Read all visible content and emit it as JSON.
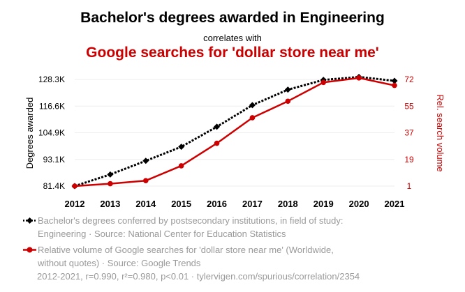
{
  "header": {
    "title": "Bachelor's degrees awarded in Engineering",
    "subtitle": "correlates with",
    "title2": "Google searches for 'dollar store near me'"
  },
  "chart_data": {
    "type": "line",
    "x": [
      2012,
      2013,
      2014,
      2015,
      2016,
      2017,
      2018,
      2019,
      2020,
      2021
    ],
    "series": [
      {
        "name": "Bachelor's degrees conferred by postsecondary institutions, in field of study: Engineering",
        "axis": "left",
        "style": "dotted",
        "marker": "diamond",
        "color": "#000000",
        "values": [
          81400,
          86500,
          92500,
          98700,
          107500,
          117000,
          123800,
          128100,
          129400,
          127700
        ]
      },
      {
        "name": "Relative volume of Google searches for 'dollar store near me'",
        "axis": "right",
        "style": "solid",
        "marker": "circle",
        "color": "#cc0000",
        "values": [
          1,
          2.6,
          4.6,
          14.5,
          29.5,
          46.5,
          57.5,
          70,
          73,
          68
        ]
      }
    ],
    "y_left": {
      "label": "Degrees awarded",
      "ticks": [
        "81.4K",
        "93.1K",
        "104.9K",
        "116.6K",
        "128.3K"
      ],
      "range": [
        81400,
        128300
      ]
    },
    "y_right": {
      "label": "Rel. search volume",
      "ticks": [
        "1",
        "19",
        "37",
        "55",
        "72"
      ],
      "range": [
        1,
        72
      ]
    },
    "grid": true
  },
  "legend": {
    "series1": "Bachelor's degrees conferred by postsecondary institutions, in field of study: Engineering · Source: National Center for Education Statistics",
    "series2": "Relative volume of Google searches for 'dollar store near me' (Worldwide, without quotes) · Source: Google Trends"
  },
  "footer": "2012-2021, r=0.990, r²=0.980, p<0.01 · tylervigen.com/spurious/correlation/2354"
}
